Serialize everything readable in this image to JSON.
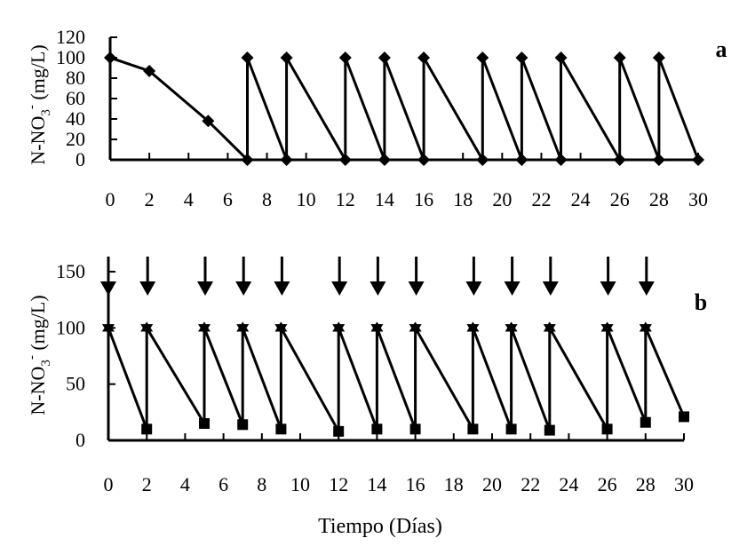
{
  "chart_data": [
    {
      "type": "line",
      "panel": "a",
      "title": "",
      "ylabel": "N-NO3- (mg/L)",
      "ylabel_parts": {
        "main": "N-NO",
        "sub": "3",
        "sup": "-",
        "unit": " (mg/L)"
      },
      "xlabel": "",
      "xlim": [
        0,
        30
      ],
      "ylim": [
        0,
        120
      ],
      "x_ticks": [
        0,
        2,
        4,
        6,
        8,
        10,
        12,
        14,
        16,
        18,
        20,
        22,
        24,
        26,
        28,
        30
      ],
      "y_ticks": [
        0,
        20,
        40,
        60,
        80,
        100,
        120
      ],
      "marker": "diamond",
      "series": [
        {
          "x": [
            0,
            2,
            5,
            7,
            7,
            9,
            9,
            12,
            12,
            14,
            14,
            16,
            16,
            19,
            19,
            21,
            21,
            23,
            23,
            26,
            26,
            28,
            28,
            30
          ],
          "y": [
            100,
            87,
            38,
            0,
            100,
            0,
            100,
            0,
            100,
            0,
            100,
            0,
            100,
            0,
            100,
            0,
            100,
            0,
            100,
            0,
            100,
            0,
            100,
            0
          ]
        }
      ],
      "grid": false,
      "legend": "none"
    },
    {
      "type": "line",
      "panel": "b",
      "title": "",
      "ylabel": "N-NO3- (mg/L)",
      "ylabel_parts": {
        "main": "N-NO",
        "sub": "3",
        "sup": "-",
        "unit": " (mg/L)"
      },
      "xlabel": "Tiempo (Días)",
      "xlim": [
        0,
        30
      ],
      "ylim": [
        0,
        150
      ],
      "x_ticks": [
        0,
        2,
        4,
        6,
        8,
        10,
        12,
        14,
        16,
        18,
        20,
        22,
        24,
        26,
        28,
        30
      ],
      "y_ticks": [
        0,
        50,
        100,
        150
      ],
      "marker": "square/star",
      "series": [
        {
          "x": [
            0,
            2,
            2,
            5,
            5,
            7,
            7,
            9,
            9,
            12,
            12,
            14,
            14,
            16,
            16,
            19,
            19,
            21,
            21,
            23,
            23,
            26,
            26,
            28,
            28,
            30
          ],
          "y": [
            100,
            10,
            100,
            15,
            100,
            14,
            100,
            10,
            100,
            8,
            100,
            10,
            100,
            10,
            100,
            10,
            100,
            10,
            100,
            9,
            100,
            10,
            100,
            16,
            100,
            21
          ]
        }
      ],
      "additions_x": [
        0,
        2,
        5,
        7,
        9,
        12,
        14,
        16,
        19,
        21,
        23,
        26,
        28
      ],
      "grid": false,
      "legend": "none"
    }
  ],
  "figure": {
    "panel_a_tag": "a",
    "panel_b_tag": "b",
    "x_title": "Tiempo (Días)"
  }
}
